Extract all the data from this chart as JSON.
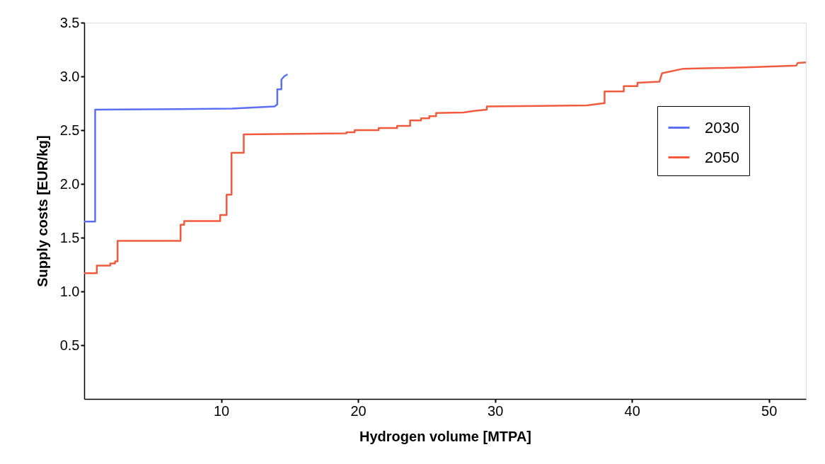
{
  "chart_data": {
    "type": "line",
    "xlabel": "Hydrogen volume [MTPA]",
    "ylabel": "Supply costs [EUR/kg]",
    "xlim": [
      0,
      52.7
    ],
    "ylim": [
      0,
      3.5
    ],
    "xticks": [
      10,
      20,
      30,
      40,
      50
    ],
    "yticks": [
      0.5,
      {
        "value": 1,
        "label": "1.0"
      },
      1.5,
      {
        "value": 2,
        "label": "2.0"
      },
      2.5,
      {
        "value": 3,
        "label": "3.0"
      },
      3.5
    ],
    "grid": false,
    "legend": "right",
    "marker": "none",
    "line_style": "solid",
    "series": [
      {
        "name": "2030",
        "color": "#5b6ff5",
        "x": [
          0,
          0.8,
          0.8,
          10.8,
          13.9,
          14.1,
          14.1,
          14.4,
          14.4,
          14.6,
          14.85
        ],
        "values": [
          1.65,
          1.65,
          2.69,
          2.7,
          2.72,
          2.74,
          2.88,
          2.88,
          2.97,
          3.0,
          3.02
        ]
      },
      {
        "name": "2050",
        "color": "#f25a3e",
        "x": [
          0,
          0.92,
          0.92,
          1.9,
          1.9,
          2.25,
          2.25,
          2.44,
          2.44,
          7.04,
          7.04,
          7.3,
          7.3,
          9.93,
          9.93,
          10.4,
          10.4,
          10.76,
          10.76,
          11.65,
          11.65,
          19.15,
          19.15,
          19.75,
          19.75,
          21.5,
          21.5,
          22.85,
          22.85,
          23.8,
          23.8,
          24.6,
          24.6,
          25.2,
          25.2,
          25.7,
          25.7,
          27.7,
          28.5,
          29.4,
          29.4,
          36.7,
          37.9,
          38.0,
          38.0,
          39.4,
          39.4,
          40.4,
          40.4,
          42.0,
          42.2,
          43.7,
          48.7,
          52.0,
          52.1,
          52.7
        ],
        "values": [
          1.17,
          1.17,
          1.24,
          1.24,
          1.26,
          1.26,
          1.28,
          1.28,
          1.47,
          1.47,
          1.62,
          1.62,
          1.655,
          1.655,
          1.71,
          1.71,
          1.9,
          1.9,
          2.29,
          2.29,
          2.46,
          2.47,
          2.48,
          2.48,
          2.5,
          2.5,
          2.52,
          2.52,
          2.54,
          2.54,
          2.59,
          2.59,
          2.61,
          2.61,
          2.63,
          2.63,
          2.66,
          2.665,
          2.68,
          2.69,
          2.72,
          2.73,
          2.75,
          2.75,
          2.86,
          2.86,
          2.91,
          2.91,
          2.94,
          2.95,
          3.03,
          3.07,
          3.085,
          3.1,
          3.125,
          3.13
        ]
      }
    ]
  }
}
